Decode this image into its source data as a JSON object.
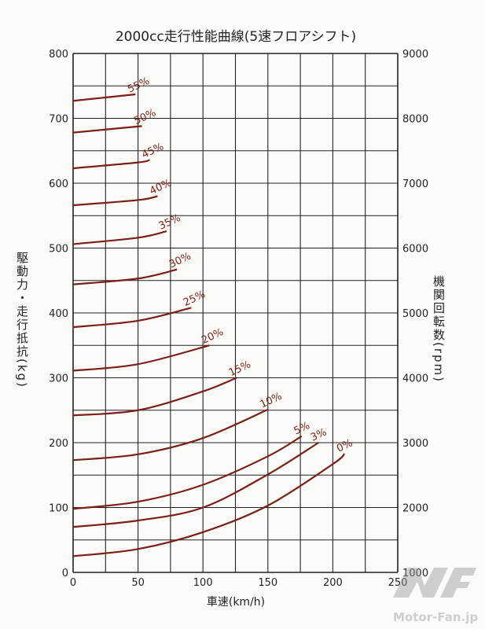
{
  "chart_data": {
    "type": "line",
    "title": "2000cc走行性能曲線(5速フロアシフト)",
    "xlabel": "車速(km/h)",
    "ylabel": "駆動力・走行抵抗(kg)",
    "y2label": "機関回転数(rpm)",
    "xlim": [
      0,
      250
    ],
    "ylim": [
      0,
      800
    ],
    "y2lim": [
      1000,
      9000
    ],
    "grid": true,
    "x_ticks": [
      0,
      50,
      100,
      150,
      200,
      250
    ],
    "y_ticks": [
      0,
      100,
      200,
      300,
      400,
      500,
      600,
      700,
      800
    ],
    "y2_ticks": [
      1000,
      2000,
      3000,
      4000,
      5000,
      6000,
      7000,
      8000,
      9000
    ],
    "series": [
      {
        "name": "0%",
        "x": [
          0,
          50,
          100,
          150,
          200,
          209
        ],
        "y": [
          25,
          36,
          62,
          103,
          167,
          183
        ]
      },
      {
        "name": "3%",
        "x": [
          0,
          50,
          100,
          150,
          189
        ],
        "y": [
          70,
          80,
          100,
          151,
          200
        ]
      },
      {
        "name": "5%",
        "x": [
          0,
          50,
          100,
          150,
          176
        ],
        "y": [
          98,
          109,
          135,
          179,
          210
        ]
      },
      {
        "name": "10%",
        "x": [
          0,
          50,
          100,
          150
        ],
        "y": [
          173,
          182,
          207,
          251
        ]
      },
      {
        "name": "15%",
        "x": [
          0,
          50,
          100,
          126
        ],
        "y": [
          242,
          250,
          279,
          300
        ]
      },
      {
        "name": "20%",
        "x": [
          0,
          50,
          105
        ],
        "y": [
          311,
          321,
          350
        ]
      },
      {
        "name": "25%",
        "x": [
          0,
          50,
          91
        ],
        "y": [
          378,
          388,
          408
        ]
      },
      {
        "name": "30%",
        "x": [
          0,
          50,
          80
        ],
        "y": [
          444,
          453,
          467
        ]
      },
      {
        "name": "35%",
        "x": [
          0,
          50,
          72
        ],
        "y": [
          506,
          516,
          526
        ]
      },
      {
        "name": "40%",
        "x": [
          0,
          50,
          65
        ],
        "y": [
          566,
          574,
          580
        ]
      },
      {
        "name": "45%",
        "x": [
          0,
          50,
          59
        ],
        "y": [
          623,
          632,
          636
        ]
      },
      {
        "name": "50%",
        "x": [
          0,
          53
        ],
        "y": [
          678,
          688
        ]
      },
      {
        "name": "55%",
        "x": [
          0,
          48
        ],
        "y": [
          727,
          737
        ]
      }
    ],
    "curve_color": "#7a1f1a"
  },
  "watermark": "Motor-Fan.jp"
}
